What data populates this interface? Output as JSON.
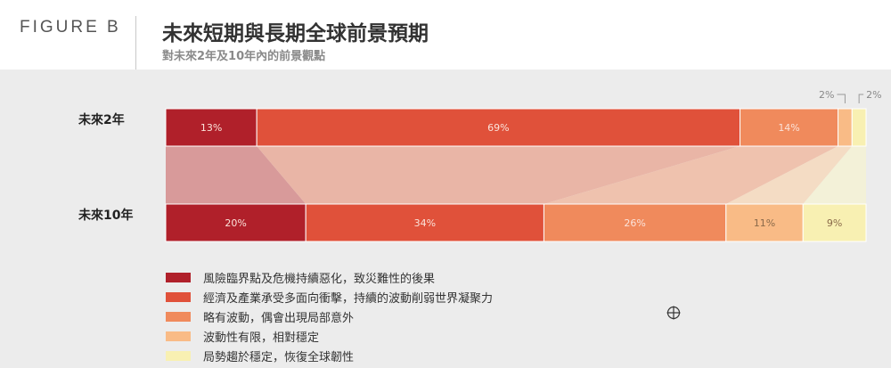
{
  "figure_label": "FIGURE B",
  "title": "未來短期與長期全球前景預期",
  "subtitle": "對未來2年及10年內的前景觀點",
  "chart_data": {
    "type": "bar",
    "orientation": "horizontal-stacked",
    "categories": [
      "未來2年",
      "未來10年"
    ],
    "series": [
      {
        "name": "風險臨界點及危機持續惡化，致災難性的後果",
        "values": [
          13,
          20
        ],
        "labels": [
          "13%",
          "20%"
        ],
        "color": "#b0202a"
      },
      {
        "name": "經濟及產業承受多面向衝擊，持續的波動削弱世界凝聚力",
        "values": [
          69,
          34
        ],
        "labels": [
          "69%",
          "34%"
        ],
        "color": "#e0513a"
      },
      {
        "name": "略有波動，偶會出現局部意外",
        "values": [
          14,
          26
        ],
        "labels": [
          "14%",
          "26%"
        ],
        "color": "#f08a5c"
      },
      {
        "name": "波動性有限，相對穩定",
        "values": [
          2,
          11
        ],
        "labels": [
          "2%",
          "11%"
        ],
        "color": "#f9bb86"
      },
      {
        "name": "局勢趨於穩定，恢復全球韌性",
        "values": [
          2,
          9
        ],
        "labels": [
          "2%",
          "9%"
        ],
        "color": "#f8f0b2"
      }
    ],
    "flow_colors": [
      "#d89a9a",
      "#e9b5a6",
      "#efc2ae",
      "#f4dcc4",
      "#f3f1d8"
    ],
    "legend_position": "bottom-left"
  }
}
